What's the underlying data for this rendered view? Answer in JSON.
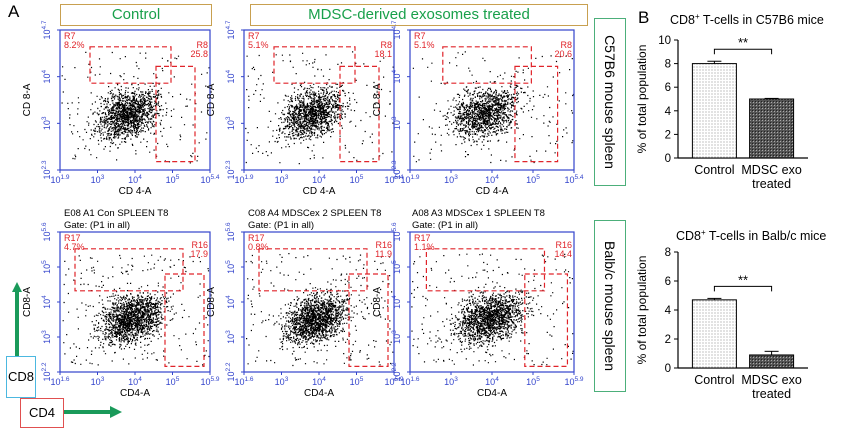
{
  "panel_a_label": "A",
  "panel_b_label": "B",
  "header_control": "Control",
  "header_treated": "MDSC-derived exosomes treated",
  "side_c57": "C57B6 mouse spleen",
  "side_balb": "Balb/c mouse spleen",
  "legend": {
    "cd8": "CD8",
    "cd4": "CD4"
  },
  "colors": {
    "gate": "#e0242a",
    "axis": "#3344cc",
    "header_text": "#19a04b",
    "header_border": "#c8a050",
    "side_border": "#4caf7a",
    "arrow": "#1a9a5a"
  },
  "flow_plots": [
    {
      "y_label": "CD 8-A",
      "x_label": "CD 4-A",
      "y_ticks": [
        "10^2.3",
        "10^3",
        "10^4",
        "10^4.7"
      ],
      "x_ticks": [
        "10^1.9",
        "10^3",
        "10^4",
        "10^5",
        "10^5.4"
      ],
      "gates": [
        {
          "name": "R7",
          "value": "8.2%"
        },
        {
          "name": "R8",
          "value": "25.8"
        }
      ],
      "title_lines": []
    },
    {
      "y_label": "CD 8-A",
      "x_label": "CD 4-A",
      "y_ticks": [
        "10^2.3",
        "10^3",
        "10^4",
        "10^4.7"
      ],
      "x_ticks": [
        "10^1.9",
        "10^3",
        "10^4",
        "10^5",
        "10^5.4"
      ],
      "gates": [
        {
          "name": "R7",
          "value": "5.1%"
        },
        {
          "name": "R8",
          "value": "18.1"
        }
      ],
      "title_lines": []
    },
    {
      "y_label": "CD 8-A",
      "x_label": "CD 4-A",
      "y_ticks": [
        "10^2.3",
        "10^3",
        "10^4",
        "10^4.7"
      ],
      "x_ticks": [
        "10^1.9",
        "10^3",
        "10^4",
        "10^5",
        "10^5.4"
      ],
      "gates": [
        {
          "name": "R7",
          "value": "5.1%"
        },
        {
          "name": "R8",
          "value": "20.6"
        }
      ],
      "title_lines": []
    },
    {
      "y_label": "CD8-A",
      "x_label": "CD4-A",
      "y_ticks": [
        "10^2.2",
        "10^3",
        "10^4",
        "10^5",
        "10^5.6"
      ],
      "x_ticks": [
        "10^1.6",
        "10^3",
        "10^4",
        "10^5",
        "10^5.9"
      ],
      "gates": [
        {
          "name": "R17",
          "value": "4.7%"
        },
        {
          "name": "R16",
          "value": "17.9"
        }
      ],
      "title_lines": [
        "E08 A1 Con SPLEEN T8",
        "Gate: (P1 in all)"
      ]
    },
    {
      "y_label": "CD8-A",
      "x_label": "CD4-A",
      "y_ticks": [
        "10^2.2",
        "10^3",
        "10^4",
        "10^5",
        "10^5.6"
      ],
      "x_ticks": [
        "10^1.6",
        "10^3",
        "10^4",
        "10^5",
        "10^5.9"
      ],
      "gates": [
        {
          "name": "R17",
          "value": "0.8%"
        },
        {
          "name": "R16",
          "value": "11.9"
        }
      ],
      "title_lines": [
        "C08 A4 MDSCex 2 SPLEEN T8",
        "Gate: (P1 in all)"
      ]
    },
    {
      "y_label": "CD8-A",
      "x_label": "CD4-A",
      "y_ticks": [
        "10^2.2",
        "10^3",
        "10^4",
        "10^5",
        "10^5.6"
      ],
      "x_ticks": [
        "10^1.6",
        "10^3",
        "10^4",
        "10^5",
        "10^5.9"
      ],
      "gates": [
        {
          "name": "R17",
          "value": "1.1%"
        },
        {
          "name": "R16",
          "value": "14.4"
        }
      ],
      "title_lines": [
        "A08 A3 MDSCex 1 SPLEEN T8",
        "Gate: (P1 in all)"
      ]
    }
  ],
  "chart_data": [
    {
      "type": "bar",
      "title": "CD8+ T-cells in C57B6 mice",
      "categories": [
        "Control",
        "MDSC exo treated"
      ],
      "values": [
        8.0,
        5.0
      ],
      "errors": [
        0.2,
        0.05
      ],
      "ylabel": "% of total population",
      "xlabel": "",
      "ylim": [
        0,
        10
      ],
      "yticks": [
        0,
        2,
        4,
        6,
        8,
        10
      ],
      "significance": "**"
    },
    {
      "type": "bar",
      "title": "CD8+ T-cells in Balb/c mice",
      "categories": [
        "Control",
        "MDSC exo treated"
      ],
      "values": [
        4.7,
        0.9
      ],
      "errors": [
        0.1,
        0.25
      ],
      "ylabel": "% of total population",
      "xlabel": "",
      "ylim": [
        0,
        8
      ],
      "yticks": [
        0,
        2,
        4,
        6,
        8
      ],
      "significance": "**"
    }
  ]
}
